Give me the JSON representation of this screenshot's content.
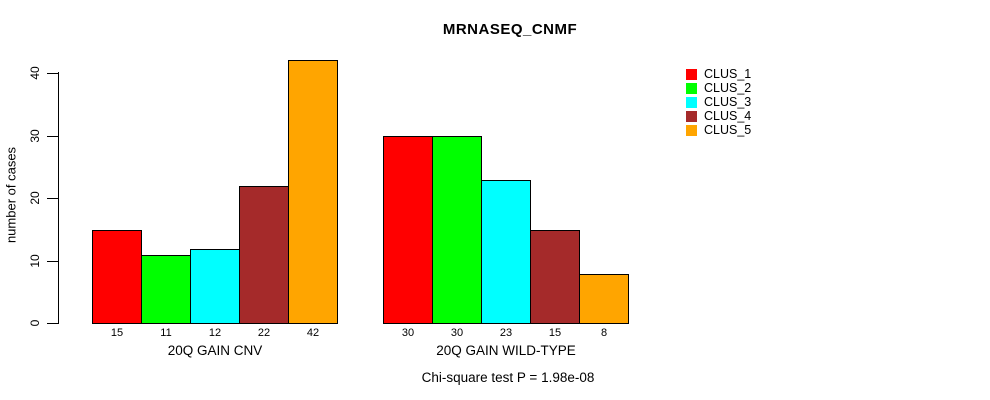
{
  "chart_data": {
    "type": "bar",
    "title": "MRNASEQ_CNMF",
    "ylabel": "number of cases",
    "ylim": [
      0,
      42
    ],
    "yticks": [
      0,
      10,
      20,
      30,
      40
    ],
    "grid": false,
    "background": "#FFFFFF",
    "bar_border_color": "#000000",
    "legend_position": "right",
    "categories": [
      "20Q GAIN CNV",
      "20Q GAIN WILD-TYPE"
    ],
    "series": [
      {
        "name": "CLUS_1",
        "color": "#FF0000",
        "values": [
          15,
          30
        ]
      },
      {
        "name": "CLUS_2",
        "color": "#00FF00",
        "values": [
          11,
          30
        ]
      },
      {
        "name": "CLUS_3",
        "color": "#00FFFF",
        "values": [
          12,
          23
        ]
      },
      {
        "name": "CLUS_4",
        "color": "#A52A2A",
        "values": [
          22,
          15
        ]
      },
      {
        "name": "CLUS_5",
        "color": "#FFA500",
        "values": [
          42,
          8
        ]
      }
    ],
    "bar_value_labels": [
      [
        "15",
        "11",
        "12",
        "22",
        "42"
      ],
      [
        "30",
        "30",
        "23",
        "15",
        "8"
      ]
    ],
    "annotation": "Chi-square test P = 1.98e-08"
  }
}
